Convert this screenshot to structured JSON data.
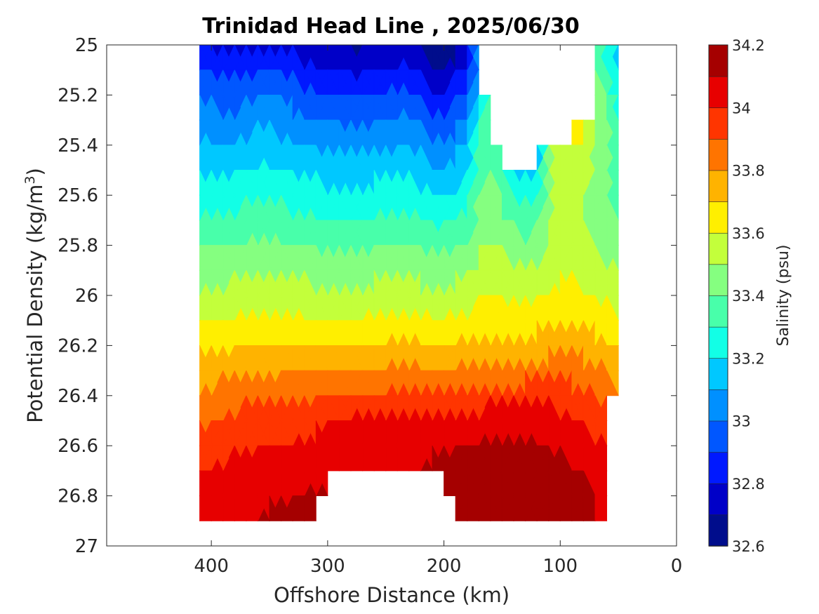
{
  "chart_data": {
    "type": "heatmap",
    "title": "Trinidad Head Line , 2025/06/30",
    "xlabel": "Offshore Distance (km)",
    "ylabel_main": "Potential Density (kg/m",
    "ylabel_sup": "3",
    "ylabel_close": ")",
    "colorbar_label": "Salinity (psu)",
    "x_reversed": true,
    "y_reversed": true,
    "xlim": [
      0,
      490
    ],
    "ylim": [
      25,
      27
    ],
    "x_ticks": [
      400,
      300,
      200,
      100,
      0
    ],
    "x_tick_labels": [
      "400",
      "300",
      "200",
      "100",
      "0"
    ],
    "y_ticks": [
      25,
      25.2,
      25.4,
      25.6,
      25.8,
      26,
      26.2,
      26.4,
      26.6,
      26.8,
      27
    ],
    "y_tick_labels": [
      "25",
      "25.2",
      "25.4",
      "25.6",
      "25.8",
      "26",
      "26.2",
      "26.4",
      "26.6",
      "26.8",
      "27"
    ],
    "colorbar_range": [
      32.6,
      34.2
    ],
    "colorbar_ticks": [
      32.6,
      32.8,
      33,
      33.2,
      33.4,
      33.6,
      33.8,
      34,
      34.2
    ],
    "colorbar_tick_labels": [
      "32.6",
      "32.8",
      "33",
      "33.2",
      "33.4",
      "33.6",
      "33.8",
      "34",
      "34.2"
    ],
    "levels": [
      32.6,
      32.7,
      32.8,
      32.9,
      33.0,
      33.1,
      33.2,
      33.3,
      33.4,
      33.5,
      33.6,
      33.7,
      33.8,
      33.9,
      34.0,
      34.1,
      34.2
    ],
    "level_colors": [
      "#000d8c",
      "#0000c8",
      "#0019ff",
      "#0057ff",
      "#0090ff",
      "#00c8ff",
      "#12ffe6",
      "#48ffaa",
      "#85ff80",
      "#c3ff3b",
      "#ffef00",
      "#ffb300",
      "#ff7400",
      "#ff3500",
      "#e70000",
      "#a50000"
    ],
    "distance_km": [
      410,
      400,
      390,
      380,
      370,
      360,
      350,
      340,
      330,
      320,
      310,
      300,
      290,
      280,
      270,
      260,
      250,
      240,
      230,
      220,
      210,
      200,
      190,
      180,
      170,
      160,
      150,
      140,
      130,
      120,
      110,
      100,
      90,
      80,
      70,
      60,
      50
    ],
    "density_kgm3": [
      25.0,
      25.1,
      25.2,
      25.3,
      25.4,
      25.5,
      25.6,
      25.7,
      25.8,
      25.9,
      26.0,
      26.1,
      26.2,
      26.3,
      26.4,
      26.5,
      26.6,
      26.7,
      26.8,
      26.9
    ],
    "salinity_psu_by_density": [
      [
        32.82,
        32.78,
        32.76,
        32.75,
        32.76,
        32.77,
        32.78,
        32.77,
        32.76,
        32.74,
        32.72,
        32.7,
        32.69,
        32.68,
        32.68,
        32.69,
        32.7,
        32.72,
        32.75,
        32.68,
        32.62,
        32.6,
        32.66,
        32.76,
        33.05,
        null,
        null,
        null,
        null,
        null,
        null,
        null,
        null,
        null,
        33.38,
        33.25,
        33.15
      ],
      [
        32.92,
        32.88,
        32.86,
        32.85,
        32.86,
        32.88,
        32.9,
        32.88,
        32.86,
        32.84,
        32.82,
        32.8,
        32.79,
        32.78,
        32.78,
        32.79,
        32.8,
        32.82,
        32.85,
        32.78,
        32.72,
        32.7,
        32.76,
        32.86,
        33.1,
        null,
        null,
        null,
        null,
        null,
        null,
        null,
        null,
        null,
        33.42,
        33.3,
        33.18
      ],
      [
        33.0,
        32.97,
        32.96,
        32.96,
        32.97,
        32.99,
        33.0,
        32.98,
        32.96,
        32.94,
        32.92,
        32.91,
        32.9,
        32.89,
        32.89,
        32.9,
        32.91,
        32.93,
        32.95,
        32.88,
        32.82,
        32.8,
        32.86,
        32.96,
        33.17,
        33.3,
        null,
        null,
        null,
        null,
        null,
        null,
        null,
        null,
        33.46,
        33.36,
        33.22
      ],
      [
        33.06,
        33.04,
        33.03,
        33.03,
        33.05,
        33.07,
        33.08,
        33.06,
        33.04,
        33.02,
        33.0,
        32.99,
        32.98,
        32.97,
        32.97,
        32.98,
        32.99,
        33.01,
        33.02,
        32.97,
        32.93,
        32.91,
        32.96,
        33.06,
        33.26,
        33.38,
        null,
        null,
        null,
        null,
        null,
        null,
        33.75,
        33.62,
        33.48,
        33.42,
        33.28
      ],
      [
        33.12,
        33.1,
        33.1,
        33.11,
        33.13,
        33.14,
        33.15,
        33.13,
        33.11,
        33.1,
        33.09,
        33.08,
        33.07,
        33.06,
        33.06,
        33.07,
        33.08,
        33.09,
        33.1,
        33.06,
        33.03,
        33.01,
        33.05,
        33.14,
        33.32,
        33.38,
        33.33,
        null,
        null,
        33.1,
        33.45,
        33.55,
        33.62,
        33.58,
        33.5,
        33.45,
        33.32
      ],
      [
        33.19,
        33.18,
        33.18,
        33.19,
        33.2,
        33.21,
        33.22,
        33.2,
        33.19,
        33.18,
        33.17,
        33.16,
        33.15,
        33.15,
        33.15,
        33.16,
        33.16,
        33.17,
        33.18,
        33.15,
        33.12,
        33.1,
        33.13,
        33.2,
        33.36,
        33.42,
        33.35,
        33.22,
        33.14,
        33.18,
        33.48,
        33.54,
        33.58,
        33.55,
        33.47,
        33.42,
        33.36
      ],
      [
        33.26,
        33.25,
        33.25,
        33.26,
        33.27,
        33.28,
        33.29,
        33.27,
        33.26,
        33.25,
        33.24,
        33.23,
        33.23,
        33.23,
        33.23,
        33.24,
        33.24,
        33.25,
        33.25,
        33.23,
        33.21,
        33.19,
        33.21,
        33.27,
        33.4,
        33.45,
        33.38,
        33.3,
        33.25,
        33.28,
        33.48,
        33.52,
        33.54,
        33.51,
        33.45,
        33.41,
        33.38
      ],
      [
        33.33,
        33.32,
        33.32,
        33.33,
        33.34,
        33.35,
        33.36,
        33.34,
        33.33,
        33.32,
        33.31,
        33.31,
        33.31,
        33.31,
        33.31,
        33.31,
        33.32,
        33.32,
        33.32,
        33.31,
        33.29,
        33.28,
        33.3,
        33.34,
        33.44,
        33.47,
        33.42,
        33.37,
        33.34,
        33.37,
        33.48,
        33.52,
        33.53,
        33.5,
        33.45,
        33.42,
        33.4
      ],
      [
        33.4,
        33.39,
        33.39,
        33.4,
        33.41,
        33.42,
        33.42,
        33.41,
        33.4,
        33.39,
        33.39,
        33.38,
        33.38,
        33.38,
        33.38,
        33.39,
        33.39,
        33.4,
        33.4,
        33.38,
        33.37,
        33.36,
        33.38,
        33.41,
        33.48,
        33.51,
        33.48,
        33.45,
        33.43,
        33.45,
        33.52,
        33.55,
        33.56,
        33.53,
        33.49,
        33.46,
        33.44
      ],
      [
        33.47,
        33.46,
        33.46,
        33.47,
        33.48,
        33.48,
        33.49,
        33.48,
        33.47,
        33.47,
        33.46,
        33.46,
        33.46,
        33.46,
        33.46,
        33.46,
        33.47,
        33.47,
        33.48,
        33.46,
        33.45,
        33.44,
        33.46,
        33.49,
        33.53,
        33.56,
        33.54,
        33.52,
        33.51,
        33.53,
        33.57,
        33.58,
        33.59,
        33.57,
        33.54,
        33.52,
        33.5
      ],
      [
        33.53,
        33.53,
        33.53,
        33.54,
        33.54,
        33.55,
        33.56,
        33.55,
        33.54,
        33.54,
        33.53,
        33.53,
        33.53,
        33.53,
        33.53,
        33.54,
        33.54,
        33.54,
        33.55,
        33.54,
        33.53,
        33.52,
        33.54,
        33.56,
        33.58,
        33.6,
        33.59,
        33.58,
        33.58,
        33.59,
        33.61,
        33.62,
        33.62,
        33.61,
        33.59,
        33.57,
        33.55
      ],
      [
        33.6,
        33.6,
        33.6,
        33.61,
        33.62,
        33.62,
        33.63,
        33.62,
        33.62,
        33.61,
        33.61,
        33.61,
        33.61,
        33.61,
        33.61,
        33.62,
        33.62,
        33.62,
        33.63,
        33.62,
        33.61,
        33.61,
        33.62,
        33.63,
        33.64,
        33.66,
        33.65,
        33.65,
        33.65,
        33.66,
        33.67,
        33.68,
        33.68,
        33.67,
        33.66,
        33.64,
        33.62
      ],
      [
        33.67,
        33.68,
        33.68,
        33.69,
        33.69,
        33.7,
        33.7,
        33.7,
        33.7,
        33.7,
        33.7,
        33.7,
        33.7,
        33.71,
        33.71,
        33.71,
        33.72,
        33.72,
        33.73,
        33.72,
        33.71,
        33.71,
        33.72,
        33.72,
        33.73,
        33.74,
        33.73,
        33.73,
        33.74,
        33.74,
        33.75,
        33.76,
        33.76,
        33.75,
        33.74,
        33.72,
        33.7
      ],
      [
        33.74,
        33.75,
        33.76,
        33.77,
        33.78,
        33.78,
        33.78,
        33.78,
        33.79,
        33.79,
        33.79,
        33.79,
        33.8,
        33.81,
        33.81,
        33.81,
        33.82,
        33.82,
        33.83,
        33.82,
        33.81,
        33.81,
        33.82,
        33.82,
        33.83,
        33.84,
        33.83,
        33.83,
        33.84,
        33.84,
        33.85,
        33.86,
        33.86,
        33.85,
        33.83,
        33.8,
        33.76
      ],
      [
        33.82,
        33.83,
        33.85,
        33.87,
        33.88,
        33.88,
        33.88,
        33.88,
        33.88,
        33.88,
        33.88,
        33.89,
        33.9,
        33.91,
        33.91,
        33.91,
        33.92,
        33.92,
        33.93,
        33.92,
        33.92,
        33.92,
        33.93,
        33.93,
        33.94,
        33.95,
        33.95,
        33.95,
        33.96,
        33.96,
        33.96,
        33.95,
        33.94,
        33.93,
        33.9,
        33.86,
        33.82
      ],
      [
        33.88,
        33.89,
        33.9,
        33.92,
        33.93,
        33.94,
        33.95,
        33.95,
        33.95,
        33.96,
        33.97,
        33.98,
        34.0,
        34.02,
        34.03,
        34.03,
        34.03,
        34.03,
        34.04,
        34.04,
        34.05,
        34.06,
        34.06,
        34.04,
        34.05,
        34.06,
        34.06,
        34.06,
        34.06,
        34.06,
        34.05,
        34.04,
        34.02,
        34.0,
        33.97,
        33.93,
        null
      ],
      [
        33.94,
        33.95,
        33.96,
        33.97,
        33.98,
        33.99,
        34.0,
        34.0,
        34.01,
        34.02,
        34.03,
        34.05,
        34.06,
        34.07,
        34.07,
        34.07,
        34.07,
        34.08,
        34.08,
        34.08,
        34.09,
        34.09,
        34.09,
        34.1,
        34.11,
        34.12,
        34.12,
        34.12,
        34.12,
        34.11,
        34.1,
        34.08,
        34.06,
        34.04,
        34.02,
        34.0,
        null
      ],
      [
        34.0,
        34.02,
        34.03,
        34.04,
        34.05,
        34.05,
        34.06,
        34.06,
        34.06,
        34.07,
        34.08,
        34.08,
        34.09,
        34.09,
        34.09,
        34.09,
        34.09,
        34.09,
        34.09,
        34.1,
        34.11,
        34.11,
        34.12,
        34.14,
        34.16,
        34.18,
        34.18,
        34.18,
        34.18,
        34.16,
        34.15,
        34.13,
        34.11,
        34.09,
        34.07,
        34.05,
        null
      ],
      [
        34.05,
        34.06,
        34.07,
        34.07,
        34.08,
        34.08,
        34.09,
        34.09,
        34.1,
        34.1,
        34.11,
        34.12,
        null,
        null,
        null,
        null,
        null,
        null,
        null,
        null,
        null,
        34.14,
        34.15,
        34.16,
        34.18,
        34.2,
        34.2,
        34.2,
        34.2,
        34.18,
        34.17,
        34.15,
        34.14,
        34.12,
        34.1,
        34.08,
        null
      ],
      [
        34.08,
        34.09,
        34.09,
        34.1,
        34.1,
        34.1,
        34.11,
        34.11,
        34.12,
        34.12,
        34.13,
        null,
        null,
        null,
        null,
        null,
        null,
        null,
        null,
        null,
        null,
        null,
        34.14,
        34.16,
        34.18,
        34.2,
        34.22,
        34.23,
        34.22,
        34.19,
        34.17,
        34.15,
        34.14,
        34.12,
        34.1,
        34.09,
        null
      ]
    ]
  }
}
